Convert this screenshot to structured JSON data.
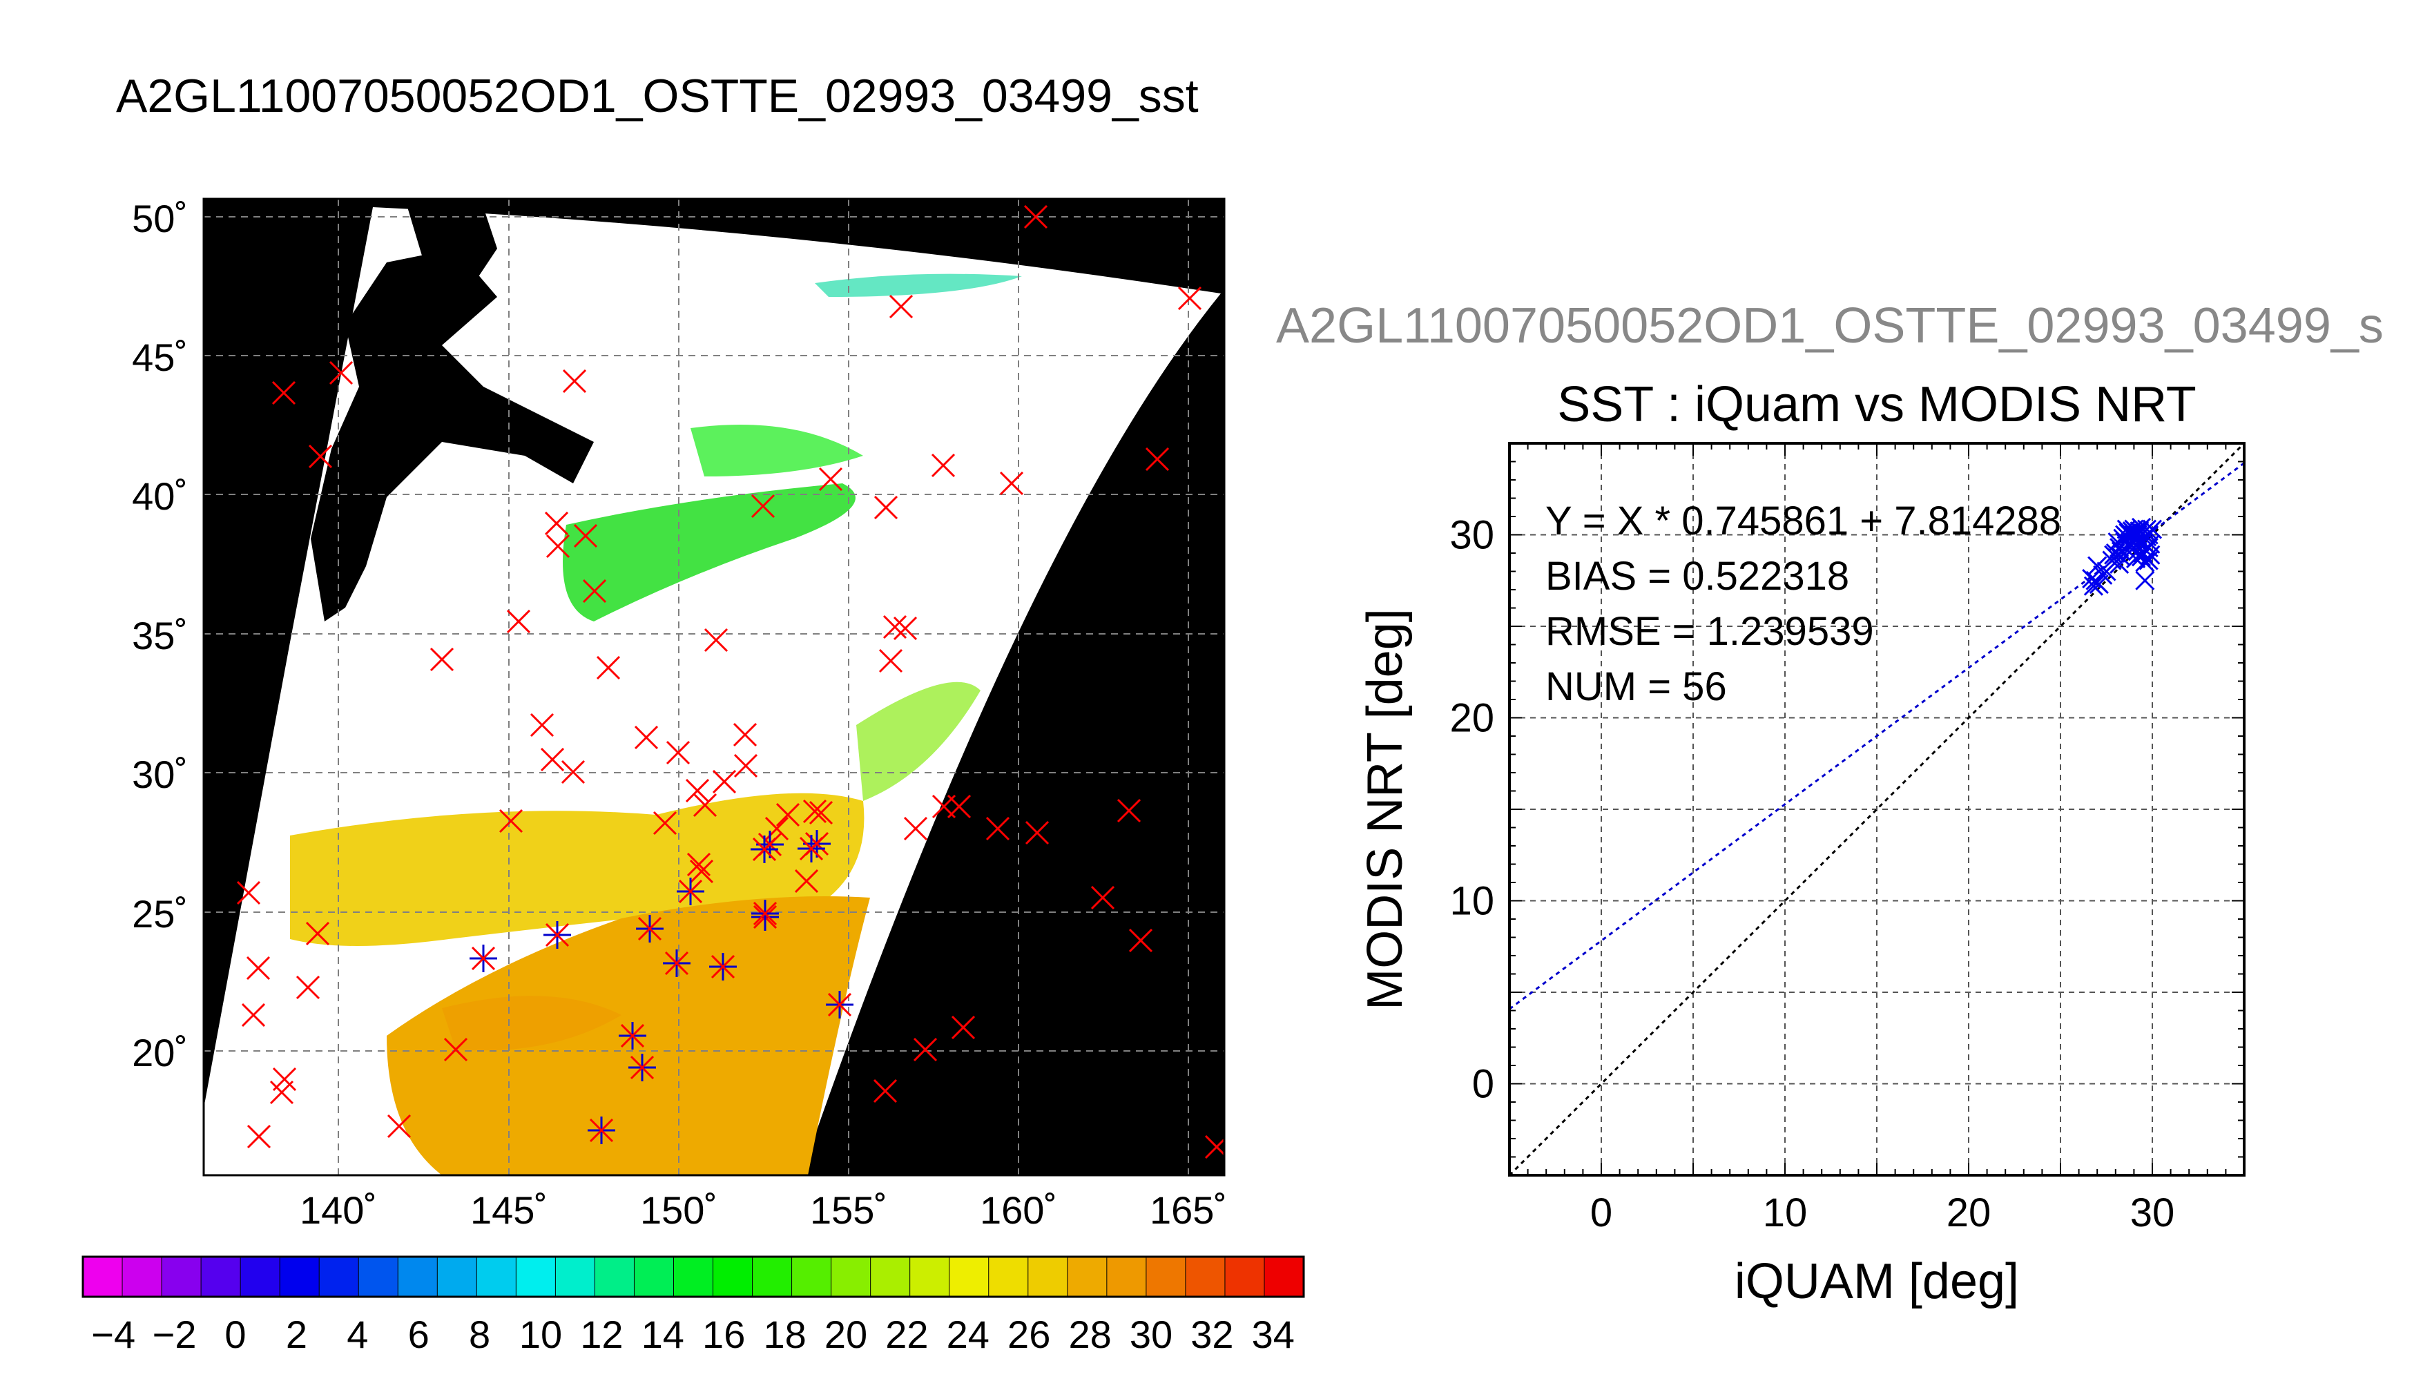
{
  "figure": {
    "title": "A2GL11007050052OD1_OSTTE_02993_03499_sst",
    "subtitle": "A2GL11007050052OD1_OSTTE_02993_03499_s"
  },
  "map": {
    "lat_ticks": [
      "50˚",
      "45˚",
      "40˚",
      "35˚",
      "30˚",
      "25˚",
      "20˚"
    ],
    "lon_ticks": [
      "140˚",
      "145˚",
      "150˚",
      "155˚",
      "160˚",
      "165˚"
    ],
    "colors": {
      "land": "#000000",
      "marker_red": "#ff0000",
      "marker_blue": "#0000cc",
      "grid": "#808080"
    }
  },
  "colorbar": {
    "labels": [
      "−4",
      "−2",
      "0",
      "2",
      "4",
      "6",
      "8",
      "10",
      "12",
      "14",
      "16",
      "18",
      "20",
      "22",
      "24",
      "26",
      "28",
      "30",
      "32",
      "34"
    ],
    "range": [
      -5,
      35
    ],
    "colors": [
      "#ee00ee",
      "#cc00ee",
      "#8800ee",
      "#5500ee",
      "#2200ee",
      "#0000ee",
      "#0022ee",
      "#0055ee",
      "#0088ee",
      "#00aaee",
      "#00ccee",
      "#00eeee",
      "#00eecc",
      "#00ee88",
      "#00ee55",
      "#00ee22",
      "#00ee00",
      "#22ee00",
      "#55ee00",
      "#88ee00",
      "#aaee00",
      "#ccee00",
      "#eeee00",
      "#eedd00",
      "#eecc00",
      "#eeaa00",
      "#ee9900",
      "#ee7700",
      "#ee5500",
      "#ee3300",
      "#ee0000"
    ]
  },
  "chart_data": {
    "type": "scatter",
    "title": "SST : iQuam vs MODIS NRT",
    "xlabel": "iQUAM [deg]",
    "ylabel": "MODIS NRT [deg]",
    "xlim": [
      -5,
      35
    ],
    "ylim": [
      -5,
      35
    ],
    "xticks": [
      "0",
      "10",
      "20",
      "30"
    ],
    "yticks": [
      "0",
      "10",
      "20",
      "30"
    ],
    "grid": true,
    "stats": {
      "equation": "Y = X * 0.745861 + 7.814288",
      "bias": "BIAS = 0.522318",
      "rmse": "RMSE = 1.239539",
      "num": "NUM = 56"
    },
    "fit": {
      "slope": 0.745861,
      "intercept": 7.814288
    },
    "one_to_one": true,
    "points": [
      [
        26.8,
        27.2
      ],
      [
        27.0,
        27.4
      ],
      [
        26.9,
        27.5
      ],
      [
        27.1,
        27.3
      ],
      [
        26.7,
        27.6
      ],
      [
        27.0,
        28.3
      ],
      [
        27.5,
        28.0
      ],
      [
        27.8,
        28.6
      ],
      [
        28.0,
        29.0
      ],
      [
        28.2,
        29.3
      ],
      [
        28.3,
        28.8
      ],
      [
        28.5,
        29.6
      ],
      [
        28.6,
        29.9
      ],
      [
        28.7,
        30.1
      ],
      [
        28.8,
        29.5
      ],
      [
        28.9,
        30.2
      ],
      [
        29.0,
        29.8
      ],
      [
        29.0,
        30.3
      ],
      [
        29.1,
        29.4
      ],
      [
        29.2,
        30.0
      ],
      [
        29.2,
        29.1
      ],
      [
        29.3,
        30.2
      ],
      [
        29.4,
        29.7
      ],
      [
        29.4,
        30.4
      ],
      [
        29.5,
        29.0
      ],
      [
        29.5,
        30.1
      ],
      [
        29.6,
        28.5
      ],
      [
        29.6,
        27.5
      ],
      [
        29.7,
        29.9
      ],
      [
        29.8,
        30.0
      ],
      [
        29.8,
        29.3
      ],
      [
        29.9,
        28.9
      ],
      [
        30.0,
        30.3
      ],
      [
        29.1,
        28.7
      ],
      [
        28.9,
        29.2
      ],
      [
        28.4,
        29.8
      ],
      [
        28.1,
        29.6
      ],
      [
        28.6,
        30.3
      ],
      [
        29.0,
        30.0
      ],
      [
        29.3,
        29.6
      ],
      [
        29.7,
        30.3
      ],
      [
        28.8,
        30.0
      ],
      [
        29.5,
        29.6
      ],
      [
        29.2,
        29.8
      ],
      [
        28.7,
        29.4
      ],
      [
        29.9,
        29.5
      ],
      [
        29.4,
        28.8
      ],
      [
        28.3,
        29.1
      ],
      [
        27.9,
        28.9
      ],
      [
        28.5,
        30.0
      ],
      [
        29.1,
        30.2
      ],
      [
        29.6,
        30.2
      ],
      [
        29.8,
        28.6
      ],
      [
        28.2,
        28.4
      ],
      [
        27.3,
        27.8
      ],
      [
        29.0,
        29.6
      ]
    ]
  }
}
